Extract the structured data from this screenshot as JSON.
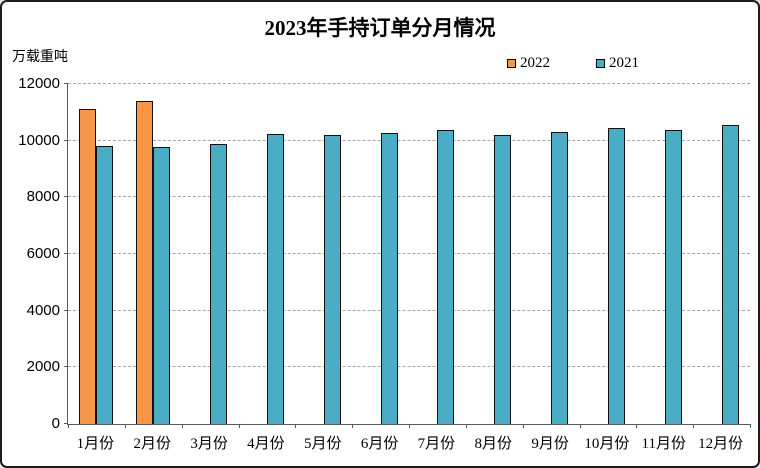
{
  "chart_data": {
    "type": "bar",
    "title": "2023年手持订单分月情况",
    "unit_label": "万载重吨",
    "categories": [
      "1月份",
      "2月份",
      "3月份",
      "4月份",
      "5月份",
      "6月份",
      "7月份",
      "8月份",
      "9月份",
      "10月份",
      "11月份",
      "12月份"
    ],
    "series": [
      {
        "name": "2022",
        "color": "#F79646",
        "values": [
          11130,
          11400,
          null,
          null,
          null,
          null,
          null,
          null,
          null,
          null,
          null,
          null
        ]
      },
      {
        "name": "2021",
        "color": "#4BACC6",
        "values": [
          9820,
          9760,
          9900,
          10240,
          10210,
          10280,
          10370,
          10210,
          10290,
          10450,
          10360,
          10550
        ]
      }
    ],
    "ylim": [
      0,
      12000
    ],
    "yticks": [
      0,
      2000,
      4000,
      6000,
      8000,
      10000,
      12000
    ],
    "grid": "horizontal-dashed",
    "legend_position": "top-right",
    "axis_color": "#595959",
    "gridline_color": "#a6a6a6",
    "bar_border_color": "#111111",
    "background_color": "#ffffff"
  }
}
